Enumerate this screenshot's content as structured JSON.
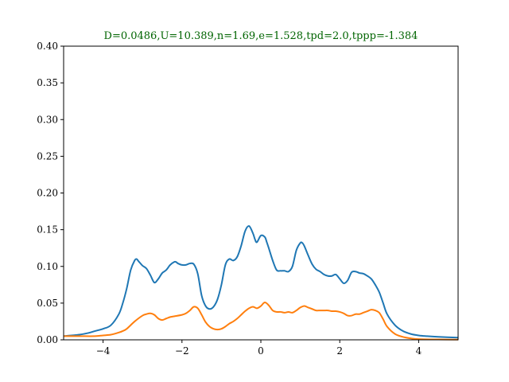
{
  "chart_data": {
    "type": "line",
    "title": "D=0.0486,U=10.389,n=1.69,e=1.528,tpd=2.0,tppp=-1.384",
    "title_color": "#006400",
    "xlabel": "",
    "ylabel": "",
    "xlim": [
      -5,
      5
    ],
    "ylim": [
      0,
      0.4
    ],
    "x_ticks": [
      -4,
      -2,
      0,
      2,
      4
    ],
    "x_tick_labels": [
      "−4",
      "−2",
      "0",
      "2",
      "4"
    ],
    "y_ticks": [
      0,
      0.05,
      0.1,
      0.15,
      0.2,
      0.25,
      0.3,
      0.35,
      0.4
    ],
    "y_tick_labels": [
      "0.00",
      "0.05",
      "0.10",
      "0.15",
      "0.20",
      "0.25",
      "0.30",
      "0.35",
      "0.40"
    ],
    "grid": false,
    "series": [
      {
        "color": "#1f77b4",
        "x": [
          -5.0,
          -4.8,
          -4.6,
          -4.4,
          -4.2,
          -4.0,
          -3.8,
          -3.6,
          -3.5,
          -3.4,
          -3.3,
          -3.2,
          -3.15,
          -3.1,
          -3.0,
          -2.9,
          -2.8,
          -2.7,
          -2.6,
          -2.5,
          -2.4,
          -2.3,
          -2.2,
          -2.15,
          -2.1,
          -2.0,
          -1.9,
          -1.8,
          -1.7,
          -1.6,
          -1.5,
          -1.4,
          -1.3,
          -1.2,
          -1.1,
          -1.0,
          -0.9,
          -0.8,
          -0.7,
          -0.6,
          -0.5,
          -0.4,
          -0.3,
          -0.2,
          -0.15,
          -0.1,
          0.0,
          0.1,
          0.15,
          0.2,
          0.3,
          0.4,
          0.5,
          0.6,
          0.7,
          0.8,
          0.9,
          1.0,
          1.05,
          1.1,
          1.2,
          1.3,
          1.4,
          1.5,
          1.6,
          1.7,
          1.8,
          1.9,
          2.0,
          2.1,
          2.2,
          2.3,
          2.4,
          2.5,
          2.6,
          2.7,
          2.8,
          2.9,
          3.0,
          3.1,
          3.2,
          3.4,
          3.6,
          3.8,
          4.0,
          4.2,
          4.5,
          5.0
        ],
        "y": [
          0.005,
          0.006,
          0.007,
          0.009,
          0.012,
          0.015,
          0.02,
          0.035,
          0.05,
          0.07,
          0.095,
          0.108,
          0.11,
          0.107,
          0.101,
          0.097,
          0.088,
          0.078,
          0.083,
          0.091,
          0.095,
          0.102,
          0.106,
          0.106,
          0.104,
          0.102,
          0.102,
          0.104,
          0.103,
          0.09,
          0.06,
          0.046,
          0.042,
          0.045,
          0.055,
          0.075,
          0.102,
          0.11,
          0.108,
          0.113,
          0.128,
          0.148,
          0.155,
          0.145,
          0.137,
          0.133,
          0.142,
          0.14,
          0.133,
          0.125,
          0.108,
          0.095,
          0.094,
          0.094,
          0.093,
          0.1,
          0.122,
          0.132,
          0.132,
          0.128,
          0.115,
          0.103,
          0.096,
          0.093,
          0.089,
          0.087,
          0.087,
          0.089,
          0.083,
          0.077,
          0.081,
          0.092,
          0.093,
          0.091,
          0.09,
          0.087,
          0.083,
          0.075,
          0.065,
          0.05,
          0.035,
          0.02,
          0.012,
          0.008,
          0.006,
          0.005,
          0.004,
          0.003
        ]
      },
      {
        "color": "#ff7f0e",
        "x": [
          -5.0,
          -4.6,
          -4.2,
          -4.0,
          -3.8,
          -3.6,
          -3.5,
          -3.4,
          -3.2,
          -3.0,
          -2.9,
          -2.8,
          -2.7,
          -2.6,
          -2.5,
          -2.4,
          -2.3,
          -2.2,
          -2.0,
          -1.9,
          -1.8,
          -1.7,
          -1.6,
          -1.5,
          -1.4,
          -1.3,
          -1.2,
          -1.1,
          -1.0,
          -0.9,
          -0.8,
          -0.7,
          -0.6,
          -0.5,
          -0.4,
          -0.3,
          -0.2,
          -0.1,
          0.0,
          0.1,
          0.2,
          0.3,
          0.4,
          0.5,
          0.6,
          0.7,
          0.8,
          0.9,
          1.0,
          1.1,
          1.2,
          1.3,
          1.4,
          1.5,
          1.6,
          1.7,
          1.8,
          1.9,
          2.0,
          2.1,
          2.2,
          2.3,
          2.4,
          2.5,
          2.6,
          2.7,
          2.8,
          2.9,
          3.0,
          3.1,
          3.2,
          3.4,
          3.6,
          3.8,
          4.0,
          4.5,
          5.0
        ],
        "y": [
          0.005,
          0.005,
          0.005,
          0.006,
          0.007,
          0.01,
          0.012,
          0.015,
          0.025,
          0.033,
          0.035,
          0.036,
          0.034,
          0.029,
          0.027,
          0.029,
          0.031,
          0.032,
          0.034,
          0.036,
          0.04,
          0.045,
          0.043,
          0.034,
          0.024,
          0.018,
          0.015,
          0.014,
          0.015,
          0.018,
          0.022,
          0.025,
          0.029,
          0.034,
          0.039,
          0.043,
          0.045,
          0.043,
          0.046,
          0.051,
          0.047,
          0.04,
          0.038,
          0.038,
          0.037,
          0.038,
          0.037,
          0.04,
          0.044,
          0.046,
          0.044,
          0.042,
          0.04,
          0.04,
          0.04,
          0.04,
          0.039,
          0.039,
          0.038,
          0.036,
          0.033,
          0.033,
          0.035,
          0.035,
          0.037,
          0.039,
          0.041,
          0.04,
          0.037,
          0.028,
          0.018,
          0.008,
          0.004,
          0.002,
          0.001,
          0.0005,
          0.0003
        ]
      }
    ]
  }
}
